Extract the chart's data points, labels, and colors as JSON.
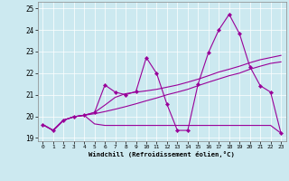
{
  "bg_color": "#cce9f0",
  "line_color": "#990099",
  "xlabel": "Windchill (Refroidissement éolien,°C)",
  "xlim": [
    -0.5,
    23.5
  ],
  "ylim": [
    18.85,
    25.3
  ],
  "yticks": [
    19,
    20,
    21,
    22,
    23,
    24,
    25
  ],
  "xticks": [
    0,
    1,
    2,
    3,
    4,
    5,
    6,
    7,
    8,
    9,
    10,
    11,
    12,
    13,
    14,
    15,
    16,
    17,
    18,
    19,
    20,
    21,
    22,
    23
  ],
  "series": [
    {
      "x": [
        0,
        1,
        2,
        3,
        4,
        5,
        6,
        7,
        8,
        9,
        10,
        11,
        12,
        13,
        14,
        15,
        16,
        17,
        18,
        19,
        20,
        21,
        22,
        23
      ],
      "y": [
        19.62,
        19.35,
        19.82,
        19.98,
        20.05,
        20.12,
        20.22,
        20.33,
        20.45,
        20.58,
        20.72,
        20.85,
        21.0,
        21.12,
        21.25,
        21.42,
        21.58,
        21.73,
        21.88,
        22.0,
        22.18,
        22.32,
        22.45,
        22.52
      ],
      "marker": false
    },
    {
      "x": [
        0,
        1,
        2,
        3,
        4,
        5,
        6,
        7,
        8,
        9,
        10,
        11,
        12,
        13,
        14,
        15,
        16,
        17,
        18,
        19,
        20,
        21,
        22,
        23
      ],
      "y": [
        19.62,
        19.35,
        19.82,
        19.98,
        20.05,
        20.18,
        20.52,
        20.88,
        21.05,
        21.12,
        21.18,
        21.25,
        21.35,
        21.45,
        21.58,
        21.72,
        21.88,
        22.05,
        22.18,
        22.32,
        22.48,
        22.62,
        22.72,
        22.82
      ],
      "marker": false
    },
    {
      "x": [
        0,
        1,
        2,
        3,
        4,
        5,
        6,
        7,
        8,
        9,
        10,
        11,
        12,
        13,
        14,
        15,
        16,
        17,
        18,
        19,
        20,
        21,
        22,
        23
      ],
      "y": [
        19.62,
        19.35,
        19.82,
        19.98,
        20.05,
        19.65,
        19.58,
        19.58,
        19.58,
        19.58,
        19.58,
        19.58,
        19.58,
        19.58,
        19.58,
        19.58,
        19.58,
        19.58,
        19.58,
        19.58,
        19.58,
        19.58,
        19.58,
        19.22
      ],
      "marker": false
    },
    {
      "x": [
        0,
        1,
        2,
        3,
        4,
        5,
        6,
        7,
        8,
        9,
        10,
        11,
        12,
        13,
        14,
        15,
        16,
        17,
        18,
        19,
        20,
        21,
        22,
        23
      ],
      "y": [
        19.62,
        19.35,
        19.82,
        19.98,
        20.05,
        20.18,
        21.45,
        21.12,
        21.0,
        21.15,
        22.72,
        21.98,
        20.55,
        19.35,
        19.35,
        21.5,
        22.95,
        24.0,
        24.72,
        23.82,
        22.3,
        21.42,
        21.12,
        19.22
      ],
      "marker": true
    }
  ]
}
